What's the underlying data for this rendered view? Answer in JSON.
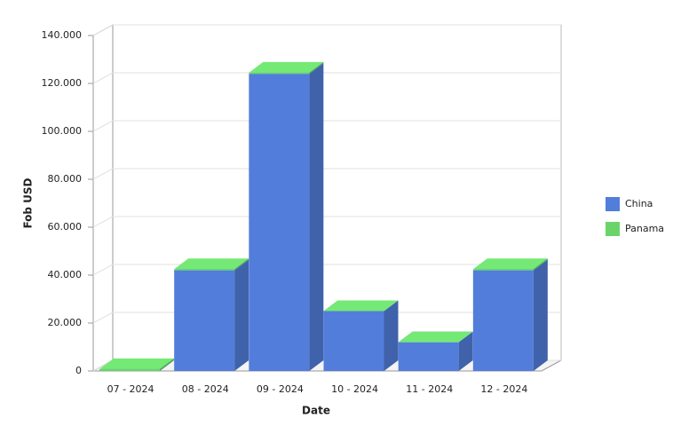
{
  "chart_data": {
    "type": "bar3d-stacked",
    "x_label": "Date",
    "y_label": "Fob USD",
    "categories": [
      "07 - 2024",
      "08 - 2024",
      "09 - 2024",
      "10 - 2024",
      "11 - 2024",
      "12 - 2024"
    ],
    "series": [
      {
        "name": "China",
        "color": "#527ddb",
        "values": [
          0,
          42000,
          124000,
          25000,
          12000,
          42000
        ]
      },
      {
        "name": "Panama",
        "color": "#6ad46a",
        "values": [
          800,
          500,
          500,
          0,
          0,
          500
        ]
      }
    ],
    "ylim": [
      0,
      140000
    ],
    "yticks": [
      0,
      {
        "value": 20000,
        "label": "20.000"
      },
      {
        "value": 40000,
        "label": "40.000"
      },
      {
        "value": 60000,
        "label": "60.000"
      },
      {
        "value": 80000,
        "label": "80.000"
      },
      {
        "value": 100000,
        "label": "100.000"
      },
      {
        "value": 120000,
        "label": "120.000"
      },
      {
        "value": 140000,
        "label": "140.000"
      }
    ],
    "grid": true,
    "legend": "right"
  }
}
